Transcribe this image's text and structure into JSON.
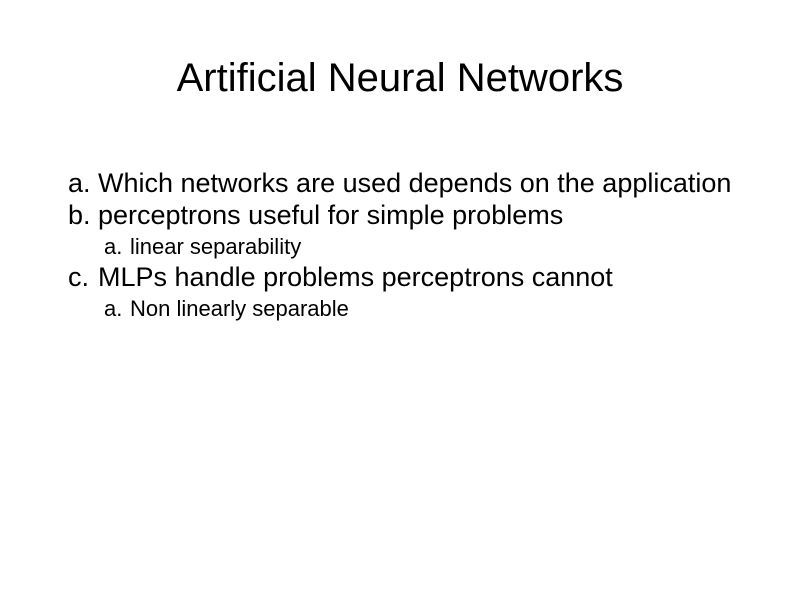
{
  "background_color": "#ffffff",
  "text_color": "#000000",
  "title": {
    "text": "Artificial Neural Networks",
    "fontsize": 40
  },
  "body": {
    "fontsize_level1": 27,
    "fontsize_level2": 22,
    "items": [
      {
        "marker": "a.",
        "text": "Which networks are used depends on the application"
      },
      {
        "marker": "b.",
        "text": "perceptrons useful for simple problems"
      },
      {
        "marker": "a.",
        "text": "linear separability",
        "sub": true
      },
      {
        "marker": "c.",
        "text": "MLPs handle problems perceptrons cannot"
      },
      {
        "marker": "a.",
        "text": "Non linearly separable",
        "sub": true
      }
    ]
  }
}
